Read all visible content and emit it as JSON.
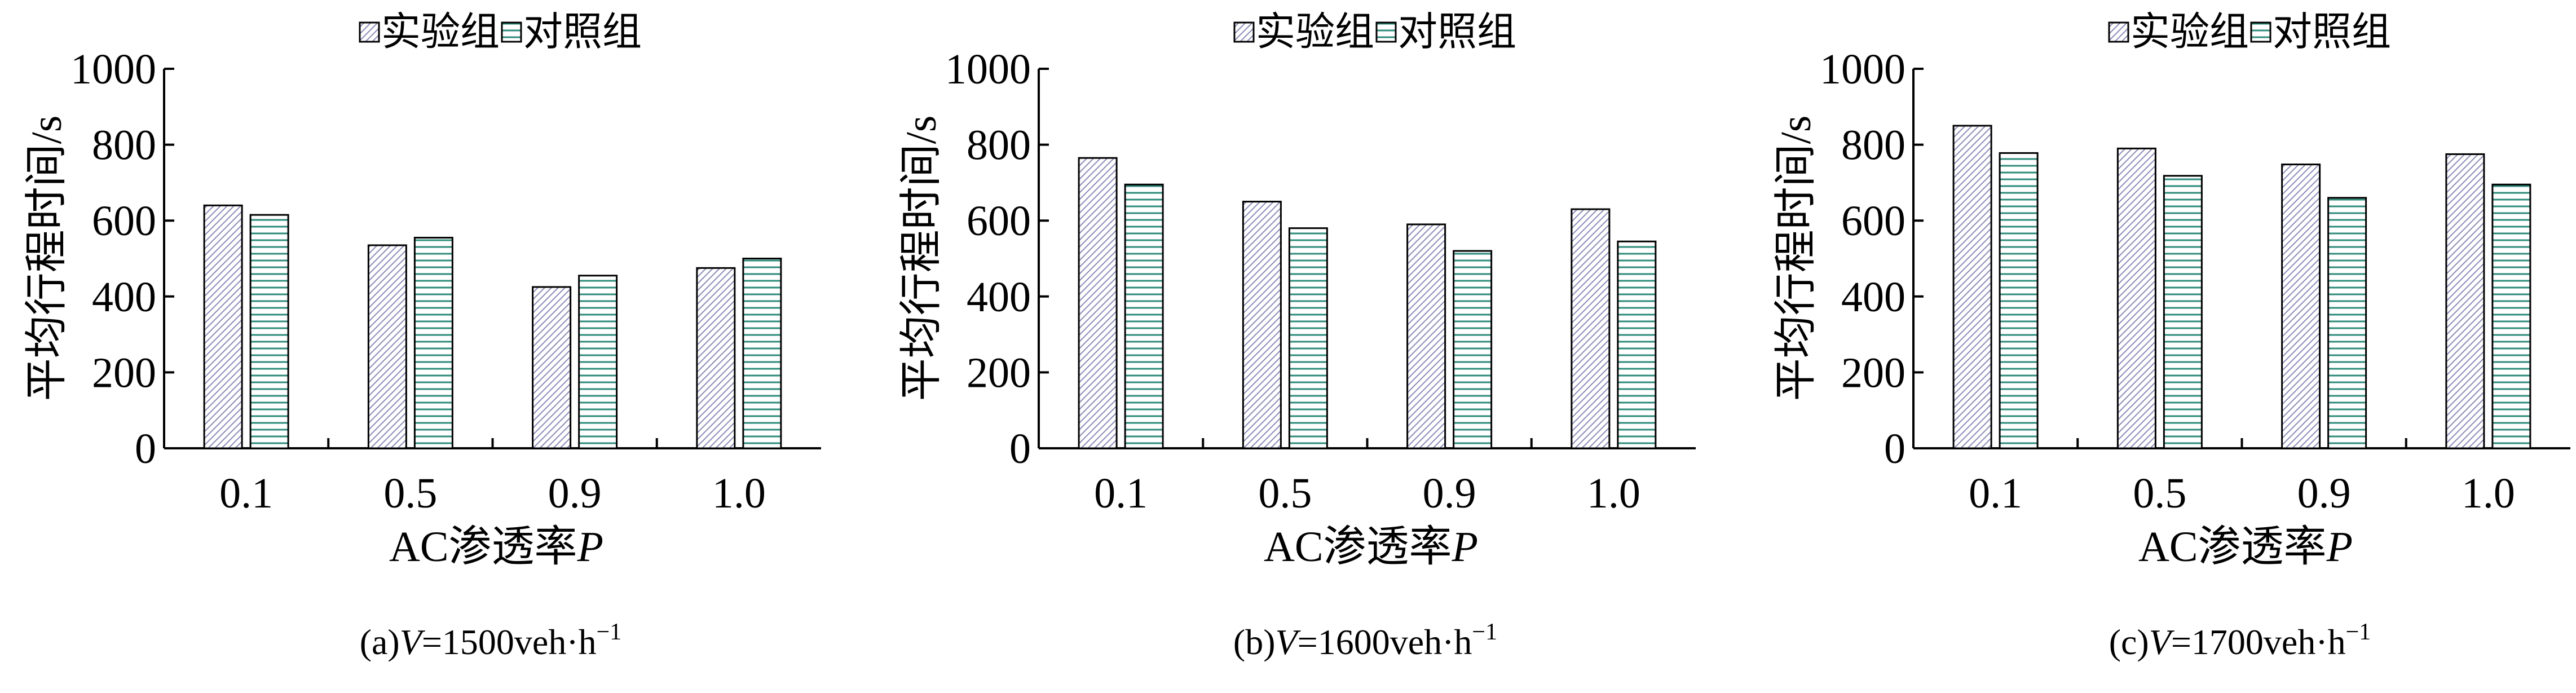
{
  "chart_data": [
    {
      "type": "bar",
      "categories": [
        "0.1",
        "0.5",
        "0.9",
        "1.0"
      ],
      "series": [
        {
          "name": "实验组",
          "color": "#8a8ab8",
          "values": [
            640,
            535,
            425,
            475
          ]
        },
        {
          "name": "对照组",
          "color": "#2e8b7a",
          "values": [
            615,
            555,
            455,
            500
          ]
        }
      ],
      "ylim": [
        0,
        1000
      ],
      "yticks": [
        0,
        200,
        400,
        600,
        800,
        1000
      ],
      "y_label": "平均行程时间/s",
      "x_label": [
        "AC渗透率",
        "P"
      ],
      "caption": [
        "(a)",
        "V",
        "=1500veh·h",
        "−1"
      ]
    },
    {
      "type": "bar",
      "categories": [
        "0.1",
        "0.5",
        "0.9",
        "1.0"
      ],
      "series": [
        {
          "name": "实验组",
          "color": "#8a8ab8",
          "values": [
            765,
            650,
            590,
            630
          ]
        },
        {
          "name": "对照组",
          "color": "#2e8b7a",
          "values": [
            695,
            580,
            520,
            545
          ]
        }
      ],
      "ylim": [
        0,
        1000
      ],
      "yticks": [
        0,
        200,
        400,
        600,
        800,
        1000
      ],
      "y_label": "平均行程时间/s",
      "x_label": [
        "AC渗透率",
        "P"
      ],
      "caption": [
        "(b)",
        "V",
        "=1600veh·h",
        "−1"
      ]
    },
    {
      "type": "bar",
      "categories": [
        "0.1",
        "0.5",
        "0.9",
        "1.0"
      ],
      "series": [
        {
          "name": "实验组",
          "color": "#8a8ab8",
          "values": [
            850,
            790,
            748,
            775
          ]
        },
        {
          "name": "对照组",
          "color": "#2e8b7a",
          "values": [
            778,
            718,
            660,
            695
          ]
        }
      ],
      "ylim": [
        0,
        1000
      ],
      "yticks": [
        0,
        200,
        400,
        600,
        800,
        1000
      ],
      "y_label": "平均行程时间/s",
      "x_label": [
        "AC渗透率",
        "P"
      ],
      "caption": [
        "(c)",
        "V",
        "=1700veh·h",
        "−1"
      ]
    }
  ]
}
